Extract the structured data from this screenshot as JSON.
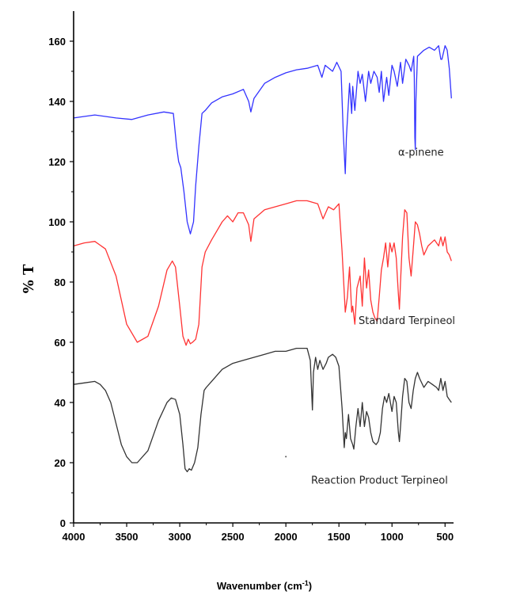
{
  "chart_data": {
    "type": "line",
    "title": "",
    "xlabel": "Wavenumber (cm",
    "xlabel_sup": "-1",
    "xlabel_close": ")",
    "ylabel": "% T",
    "xlim": [
      4000,
      420
    ],
    "ylim": [
      0,
      170
    ],
    "xticks": [
      4000,
      3500,
      3000,
      2500,
      2000,
      1500,
      1000,
      500
    ],
    "yticks": [
      0,
      20,
      40,
      60,
      80,
      100,
      120,
      140,
      160
    ],
    "grid": false,
    "series": [
      {
        "name": "α-pinene",
        "color": "#3333ff",
        "points": [
          [
            4000,
            134.5
          ],
          [
            3800,
            135.5
          ],
          [
            3600,
            134.5
          ],
          [
            3450,
            134
          ],
          [
            3300,
            135.5
          ],
          [
            3150,
            136.5
          ],
          [
            3060,
            136
          ],
          [
            3030,
            125
          ],
          [
            3010,
            120
          ],
          [
            2990,
            118
          ],
          [
            2960,
            110
          ],
          [
            2930,
            100
          ],
          [
            2900,
            96
          ],
          [
            2870,
            100
          ],
          [
            2850,
            112
          ],
          [
            2820,
            125
          ],
          [
            2790,
            136
          ],
          [
            2760,
            137
          ],
          [
            2700,
            139.5
          ],
          [
            2600,
            141.5
          ],
          [
            2500,
            142.5
          ],
          [
            2400,
            144
          ],
          [
            2350,
            140
          ],
          [
            2330,
            136.5
          ],
          [
            2300,
            141
          ],
          [
            2200,
            146
          ],
          [
            2100,
            148
          ],
          [
            2000,
            149.5
          ],
          [
            1900,
            150.5
          ],
          [
            1800,
            151
          ],
          [
            1700,
            152
          ],
          [
            1660,
            148
          ],
          [
            1630,
            152
          ],
          [
            1560,
            150
          ],
          [
            1520,
            153
          ],
          [
            1480,
            150
          ],
          [
            1460,
            130
          ],
          [
            1440,
            116
          ],
          [
            1430,
            128
          ],
          [
            1400,
            146
          ],
          [
            1380,
            136
          ],
          [
            1370,
            145
          ],
          [
            1350,
            137
          ],
          [
            1320,
            150
          ],
          [
            1300,
            146
          ],
          [
            1280,
            149
          ],
          [
            1250,
            140
          ],
          [
            1220,
            150
          ],
          [
            1200,
            146
          ],
          [
            1170,
            150
          ],
          [
            1140,
            148
          ],
          [
            1120,
            143
          ],
          [
            1100,
            150
          ],
          [
            1080,
            140
          ],
          [
            1050,
            148
          ],
          [
            1030,
            142
          ],
          [
            1000,
            152
          ],
          [
            980,
            150
          ],
          [
            950,
            145
          ],
          [
            920,
            153
          ],
          [
            900,
            146
          ],
          [
            870,
            154
          ],
          [
            840,
            152
          ],
          [
            820,
            150
          ],
          [
            795,
            155
          ],
          [
            790,
            148
          ],
          [
            785,
            128
          ],
          [
            780,
            124
          ],
          [
            775,
            140
          ],
          [
            760,
            155
          ],
          [
            700,
            157
          ],
          [
            650,
            158
          ],
          [
            600,
            157
          ],
          [
            560,
            158.5
          ],
          [
            540,
            154
          ],
          [
            530,
            154
          ],
          [
            500,
            158.5
          ],
          [
            480,
            157
          ],
          [
            460,
            151
          ],
          [
            440,
            141
          ]
        ]
      },
      {
        "name": "Standard Terpineol",
        "color": "#ff3333",
        "points": [
          [
            4000,
            92
          ],
          [
            3900,
            93
          ],
          [
            3800,
            93.5
          ],
          [
            3700,
            91
          ],
          [
            3600,
            82
          ],
          [
            3500,
            66
          ],
          [
            3400,
            60
          ],
          [
            3300,
            62
          ],
          [
            3200,
            72
          ],
          [
            3120,
            84
          ],
          [
            3070,
            87
          ],
          [
            3040,
            85
          ],
          [
            3000,
            72
          ],
          [
            2970,
            62
          ],
          [
            2940,
            59
          ],
          [
            2920,
            61
          ],
          [
            2900,
            59.5
          ],
          [
            2880,
            60
          ],
          [
            2850,
            61
          ],
          [
            2820,
            66
          ],
          [
            2790,
            85
          ],
          [
            2760,
            90
          ],
          [
            2700,
            94
          ],
          [
            2650,
            97
          ],
          [
            2600,
            100
          ],
          [
            2550,
            102
          ],
          [
            2500,
            100
          ],
          [
            2450,
            103
          ],
          [
            2400,
            103
          ],
          [
            2350,
            99
          ],
          [
            2330,
            93.5
          ],
          [
            2300,
            101
          ],
          [
            2200,
            104
          ],
          [
            2100,
            105
          ],
          [
            2000,
            106
          ],
          [
            1900,
            107
          ],
          [
            1800,
            107
          ],
          [
            1700,
            106
          ],
          [
            1650,
            101
          ],
          [
            1600,
            105
          ],
          [
            1550,
            104
          ],
          [
            1500,
            106
          ],
          [
            1470,
            90
          ],
          [
            1440,
            70
          ],
          [
            1420,
            75
          ],
          [
            1400,
            85
          ],
          [
            1380,
            70
          ],
          [
            1370,
            72
          ],
          [
            1350,
            66
          ],
          [
            1330,
            78
          ],
          [
            1300,
            82
          ],
          [
            1280,
            72
          ],
          [
            1260,
            88
          ],
          [
            1240,
            78
          ],
          [
            1220,
            84
          ],
          [
            1200,
            74
          ],
          [
            1180,
            70
          ],
          [
            1160,
            68
          ],
          [
            1140,
            67
          ],
          [
            1120,
            75
          ],
          [
            1100,
            84
          ],
          [
            1080,
            88
          ],
          [
            1060,
            93
          ],
          [
            1040,
            85
          ],
          [
            1020,
            93
          ],
          [
            1000,
            90
          ],
          [
            980,
            93
          ],
          [
            960,
            88
          ],
          [
            940,
            76
          ],
          [
            930,
            71
          ],
          [
            920,
            80
          ],
          [
            900,
            95
          ],
          [
            880,
            104
          ],
          [
            860,
            103
          ],
          [
            840,
            88
          ],
          [
            820,
            82
          ],
          [
            800,
            91
          ],
          [
            780,
            100
          ],
          [
            760,
            99
          ],
          [
            740,
            96
          ],
          [
            720,
            92
          ],
          [
            700,
            89
          ],
          [
            660,
            92
          ],
          [
            600,
            94
          ],
          [
            560,
            92
          ],
          [
            540,
            95
          ],
          [
            520,
            92
          ],
          [
            500,
            95
          ],
          [
            480,
            90
          ],
          [
            460,
            89
          ],
          [
            440,
            87
          ]
        ]
      },
      {
        "name": "Reaction Product Terpineol",
        "color": "#333333",
        "points": [
          [
            4000,
            46
          ],
          [
            3900,
            46.5
          ],
          [
            3800,
            47
          ],
          [
            3750,
            46
          ],
          [
            3700,
            44
          ],
          [
            3650,
            40
          ],
          [
            3600,
            33
          ],
          [
            3550,
            26
          ],
          [
            3500,
            22
          ],
          [
            3450,
            20
          ],
          [
            3400,
            20
          ],
          [
            3300,
            24
          ],
          [
            3200,
            34
          ],
          [
            3120,
            40
          ],
          [
            3080,
            41.5
          ],
          [
            3040,
            41
          ],
          [
            3000,
            36
          ],
          [
            2970,
            26
          ],
          [
            2950,
            18
          ],
          [
            2930,
            17
          ],
          [
            2910,
            18
          ],
          [
            2890,
            17.5
          ],
          [
            2860,
            20
          ],
          [
            2830,
            25
          ],
          [
            2800,
            36
          ],
          [
            2770,
            44
          ],
          [
            2750,
            45
          ],
          [
            2700,
            47
          ],
          [
            2650,
            49
          ],
          [
            2600,
            51
          ],
          [
            2500,
            53
          ],
          [
            2400,
            54
          ],
          [
            2300,
            55
          ],
          [
            2200,
            56
          ],
          [
            2100,
            57
          ],
          [
            2000,
            57
          ],
          [
            1900,
            58
          ],
          [
            1800,
            58
          ],
          [
            1770,
            54
          ],
          [
            1750,
            37.5
          ],
          [
            1740,
            50
          ],
          [
            1720,
            55
          ],
          [
            1700,
            51
          ],
          [
            1680,
            54
          ],
          [
            1650,
            51
          ],
          [
            1620,
            53
          ],
          [
            1600,
            55
          ],
          [
            1560,
            56
          ],
          [
            1530,
            55
          ],
          [
            1500,
            52
          ],
          [
            1470,
            38
          ],
          [
            1450,
            25
          ],
          [
            1440,
            30
          ],
          [
            1430,
            28
          ],
          [
            1410,
            36
          ],
          [
            1390,
            28
          ],
          [
            1370,
            26
          ],
          [
            1360,
            24.5
          ],
          [
            1340,
            32
          ],
          [
            1320,
            38
          ],
          [
            1300,
            32
          ],
          [
            1280,
            40
          ],
          [
            1260,
            32
          ],
          [
            1240,
            37
          ],
          [
            1220,
            35
          ],
          [
            1200,
            30
          ],
          [
            1180,
            27
          ],
          [
            1150,
            26
          ],
          [
            1130,
            27
          ],
          [
            1110,
            30
          ],
          [
            1090,
            38
          ],
          [
            1070,
            42
          ],
          [
            1050,
            40
          ],
          [
            1030,
            43
          ],
          [
            1000,
            37
          ],
          [
            980,
            42
          ],
          [
            960,
            40
          ],
          [
            940,
            30
          ],
          [
            930,
            27
          ],
          [
            920,
            32
          ],
          [
            900,
            42
          ],
          [
            880,
            48
          ],
          [
            860,
            47
          ],
          [
            840,
            40
          ],
          [
            820,
            38
          ],
          [
            800,
            44
          ],
          [
            780,
            48
          ],
          [
            760,
            50
          ],
          [
            740,
            48
          ],
          [
            700,
            45
          ],
          [
            660,
            47
          ],
          [
            620,
            46
          ],
          [
            580,
            45
          ],
          [
            560,
            44
          ],
          [
            540,
            48
          ],
          [
            520,
            44
          ],
          [
            500,
            47
          ],
          [
            480,
            42
          ],
          [
            460,
            41
          ],
          [
            440,
            40
          ]
        ]
      }
    ]
  }
}
